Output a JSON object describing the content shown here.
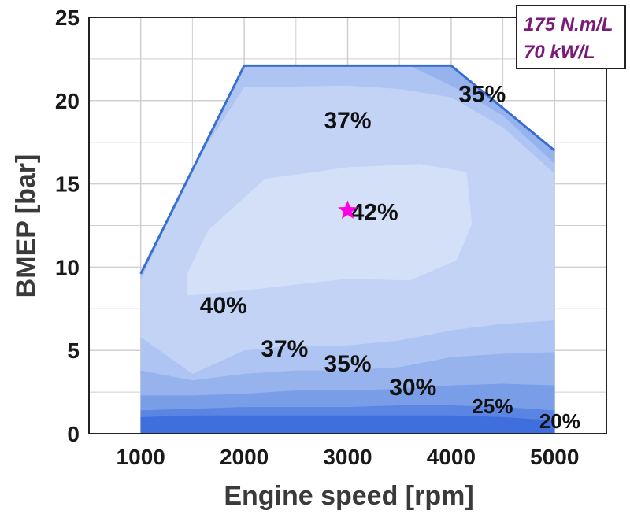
{
  "colors": {
    "boundary": "#3a6fd0",
    "grid": "#cfcfcf",
    "marker": "#ff00e6",
    "spec_text": "#7a1a7a",
    "bands": [
      "#3f6fdc",
      "#5b85e3",
      "#7a9de8",
      "#97b3ee",
      "#aec4f2",
      "#c2d3f5",
      "#d3e0f8"
    ]
  },
  "spec_box": {
    "torque_density": "175 N.m/L",
    "power_density": "70 kW/L"
  },
  "chart_data": {
    "type": "contour",
    "title": "",
    "xlabel": "Engine speed [rpm]",
    "ylabel": "BMEP [bar]",
    "xlim": [
      500,
      5500
    ],
    "ylim": [
      0,
      25
    ],
    "xticks": [
      1000,
      2000,
      3000,
      4000,
      5000
    ],
    "xtick_labels": [
      "1000",
      "2000",
      "3000",
      "4000",
      "5000"
    ],
    "yticks": [
      0,
      5,
      10,
      15,
      20,
      25
    ],
    "ytick_labels": [
      "0",
      "5",
      "10",
      "15",
      "20",
      "25"
    ],
    "grid": true,
    "full_load_curve": {
      "x": [
        1000,
        2000,
        4000,
        5000
      ],
      "y": [
        9.6,
        22.1,
        22.1,
        17.0
      ]
    },
    "peak_efficiency_point": {
      "x": 3000,
      "y": 13.4,
      "label": "42%"
    },
    "contour_labels": [
      {
        "text": "35%",
        "x": 4300,
        "y": 20.4
      },
      {
        "text": "37%",
        "x": 3000,
        "y": 18.8
      },
      {
        "text": "42%",
        "x": 3260,
        "y": 13.3
      },
      {
        "text": "40%",
        "x": 1800,
        "y": 7.7
      },
      {
        "text": "37%",
        "x": 2390,
        "y": 5.1
      },
      {
        "text": "35%",
        "x": 3000,
        "y": 4.2
      },
      {
        "text": "30%",
        "x": 3630,
        "y": 2.8
      },
      {
        "text": "25%",
        "x": 4400,
        "y": 1.7
      },
      {
        "text": "20%",
        "x": 5050,
        "y": 0.8
      }
    ],
    "efficiency_bands": [
      {
        "level": "20%",
        "x": [
          1000,
          1500,
          2000,
          2500,
          3000,
          3500,
          4000,
          4500,
          5000
        ],
        "y": [
          1.0,
          1.1,
          1.1,
          1.1,
          1.1,
          1.1,
          1.1,
          1.0,
          0.8
        ]
      },
      {
        "level": "25%",
        "x": [
          1000,
          1500,
          2000,
          2500,
          3000,
          3500,
          4000,
          4500,
          5000
        ],
        "y": [
          1.4,
          1.5,
          1.6,
          1.6,
          1.6,
          1.7,
          1.7,
          1.6,
          1.4
        ]
      },
      {
        "level": "30%",
        "x": [
          1000,
          1500,
          2000,
          2500,
          3000,
          3500,
          4000,
          4500,
          5000
        ],
        "y": [
          2.3,
          2.3,
          2.4,
          2.6,
          2.6,
          2.7,
          2.9,
          3.0,
          2.9
        ]
      },
      {
        "level": "35%",
        "x": [
          1000,
          1500,
          2000,
          2500,
          3000,
          3500,
          4000,
          4500,
          5000
        ],
        "y": [
          3.8,
          3.2,
          3.6,
          3.8,
          3.8,
          4.0,
          4.6,
          4.8,
          4.9
        ]
      },
      {
        "level": "37%",
        "x": [
          1000,
          1500,
          2000,
          2500,
          3000,
          3500,
          4000,
          4500,
          5000
        ],
        "y": [
          5.8,
          3.6,
          5.0,
          5.3,
          5.3,
          5.6,
          6.2,
          6.6,
          6.8
        ]
      }
    ]
  }
}
